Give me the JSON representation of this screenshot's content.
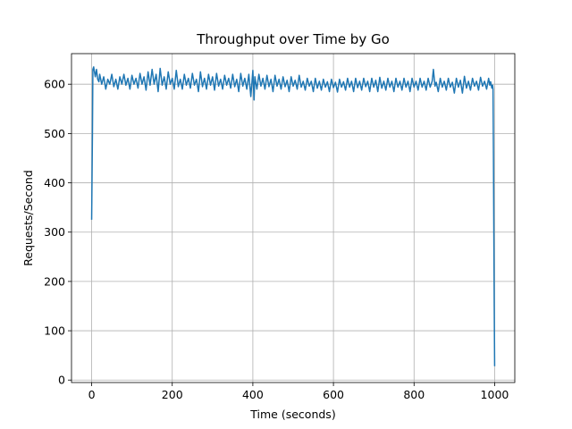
{
  "chart_data": {
    "type": "line",
    "title": "Throughput over Time by Go",
    "xlabel": "Time (seconds)",
    "ylabel": "Requests/Second",
    "xlim": [
      -50,
      1050
    ],
    "ylim": [
      -5,
      662
    ],
    "xticks": [
      0,
      200,
      400,
      600,
      800,
      1000
    ],
    "yticks": [
      0,
      100,
      200,
      300,
      400,
      500,
      600
    ],
    "grid": true,
    "series": [
      {
        "color": "#1f77b4",
        "points": [
          [
            0,
            325
          ],
          [
            2,
            505
          ],
          [
            3,
            630
          ],
          [
            5,
            635
          ],
          [
            7,
            625
          ],
          [
            9,
            615
          ],
          [
            12,
            630
          ],
          [
            15,
            610
          ],
          [
            18,
            605
          ],
          [
            20,
            620
          ],
          [
            25,
            600
          ],
          [
            30,
            615
          ],
          [
            35,
            590
          ],
          [
            40,
            610
          ],
          [
            45,
            600
          ],
          [
            50,
            620
          ],
          [
            55,
            595
          ],
          [
            60,
            610
          ],
          [
            65,
            590
          ],
          [
            70,
            615
          ],
          [
            75,
            600
          ],
          [
            80,
            620
          ],
          [
            85,
            598
          ],
          [
            90,
            612
          ],
          [
            95,
            590
          ],
          [
            100,
            618
          ],
          [
            105,
            600
          ],
          [
            110,
            612
          ],
          [
            115,
            592
          ],
          [
            120,
            622
          ],
          [
            125,
            600
          ],
          [
            130,
            615
          ],
          [
            135,
            588
          ],
          [
            140,
            625
          ],
          [
            145,
            598
          ],
          [
            150,
            630
          ],
          [
            155,
            600
          ],
          [
            160,
            620
          ],
          [
            165,
            585
          ],
          [
            170,
            632
          ],
          [
            175,
            598
          ],
          [
            180,
            615
          ],
          [
            185,
            590
          ],
          [
            190,
            625
          ],
          [
            195,
            600
          ],
          [
            200,
            612
          ],
          [
            205,
            590
          ],
          [
            210,
            628
          ],
          [
            215,
            595
          ],
          [
            220,
            610
          ],
          [
            225,
            590
          ],
          [
            230,
            620
          ],
          [
            235,
            598
          ],
          [
            240,
            612
          ],
          [
            245,
            592
          ],
          [
            250,
            622
          ],
          [
            255,
            598
          ],
          [
            260,
            610
          ],
          [
            265,
            585
          ],
          [
            270,
            625
          ],
          [
            275,
            595
          ],
          [
            280,
            612
          ],
          [
            285,
            590
          ],
          [
            290,
            620
          ],
          [
            295,
            598
          ],
          [
            300,
            615
          ],
          [
            305,
            588
          ],
          [
            310,
            622
          ],
          [
            315,
            596
          ],
          [
            320,
            610
          ],
          [
            325,
            590
          ],
          [
            330,
            618
          ],
          [
            335,
            598
          ],
          [
            340,
            612
          ],
          [
            345,
            592
          ],
          [
            350,
            620
          ],
          [
            355,
            595
          ],
          [
            360,
            610
          ],
          [
            365,
            585
          ],
          [
            370,
            622
          ],
          [
            375,
            596
          ],
          [
            380,
            612
          ],
          [
            385,
            590
          ],
          [
            390,
            620
          ],
          [
            395,
            575
          ],
          [
            400,
            628
          ],
          [
            403,
            568
          ],
          [
            405,
            615
          ],
          [
            410,
            590
          ],
          [
            415,
            620
          ],
          [
            420,
            596
          ],
          [
            425,
            612
          ],
          [
            430,
            590
          ],
          [
            435,
            618
          ],
          [
            440,
            595
          ],
          [
            445,
            610
          ],
          [
            450,
            585
          ],
          [
            455,
            618
          ],
          [
            460,
            596
          ],
          [
            465,
            610
          ],
          [
            470,
            590
          ],
          [
            475,
            615
          ],
          [
            480,
            595
          ],
          [
            485,
            608
          ],
          [
            490,
            585
          ],
          [
            495,
            615
          ],
          [
            500,
            596
          ],
          [
            505,
            608
          ],
          [
            510,
            590
          ],
          [
            515,
            618
          ],
          [
            520,
            594
          ],
          [
            525,
            606
          ],
          [
            530,
            588
          ],
          [
            535,
            612
          ],
          [
            540,
            596
          ],
          [
            545,
            606
          ],
          [
            550,
            585
          ],
          [
            555,
            612
          ],
          [
            560,
            592
          ],
          [
            565,
            606
          ],
          [
            570,
            588
          ],
          [
            575,
            610
          ],
          [
            580,
            594
          ],
          [
            585,
            605
          ],
          [
            590,
            585
          ],
          [
            595,
            610
          ],
          [
            600,
            593
          ],
          [
            605,
            604
          ],
          [
            610,
            584
          ],
          [
            615,
            610
          ],
          [
            620,
            594
          ],
          [
            625,
            605
          ],
          [
            630,
            588
          ],
          [
            635,
            612
          ],
          [
            640,
            594
          ],
          [
            645,
            606
          ],
          [
            650,
            585
          ],
          [
            655,
            612
          ],
          [
            660,
            593
          ],
          [
            665,
            606
          ],
          [
            670,
            588
          ],
          [
            675,
            612
          ],
          [
            680,
            595
          ],
          [
            685,
            606
          ],
          [
            690,
            585
          ],
          [
            695,
            612
          ],
          [
            700,
            594
          ],
          [
            705,
            608
          ],
          [
            710,
            585
          ],
          [
            715,
            614
          ],
          [
            720,
            592
          ],
          [
            725,
            606
          ],
          [
            730,
            588
          ],
          [
            735,
            612
          ],
          [
            740,
            594
          ],
          [
            745,
            606
          ],
          [
            750,
            585
          ],
          [
            755,
            612
          ],
          [
            760,
            594
          ],
          [
            765,
            606
          ],
          [
            770,
            588
          ],
          [
            775,
            612
          ],
          [
            780,
            594
          ],
          [
            785,
            606
          ],
          [
            790,
            585
          ],
          [
            795,
            612
          ],
          [
            800,
            594
          ],
          [
            805,
            606
          ],
          [
            810,
            588
          ],
          [
            815,
            612
          ],
          [
            820,
            594
          ],
          [
            825,
            606
          ],
          [
            830,
            588
          ],
          [
            835,
            612
          ],
          [
            840,
            594
          ],
          [
            845,
            606
          ],
          [
            848,
            630
          ],
          [
            852,
            596
          ],
          [
            855,
            604
          ],
          [
            860,
            585
          ],
          [
            865,
            612
          ],
          [
            870,
            594
          ],
          [
            875,
            606
          ],
          [
            880,
            588
          ],
          [
            885,
            612
          ],
          [
            890,
            594
          ],
          [
            895,
            604
          ],
          [
            900,
            582
          ],
          [
            905,
            612
          ],
          [
            910,
            594
          ],
          [
            915,
            608
          ],
          [
            920,
            582
          ],
          [
            925,
            616
          ],
          [
            930,
            592
          ],
          [
            935,
            606
          ],
          [
            940,
            588
          ],
          [
            945,
            612
          ],
          [
            950,
            596
          ],
          [
            955,
            606
          ],
          [
            960,
            588
          ],
          [
            965,
            614
          ],
          [
            970,
            596
          ],
          [
            975,
            606
          ],
          [
            980,
            590
          ],
          [
            985,
            612
          ],
          [
            988,
            598
          ],
          [
            990,
            605
          ],
          [
            993,
            592
          ],
          [
            995,
            598
          ],
          [
            996,
            590
          ],
          [
            997,
            460
          ],
          [
            998,
            300
          ],
          [
            999,
            150
          ],
          [
            1000,
            28
          ]
        ]
      }
    ]
  }
}
